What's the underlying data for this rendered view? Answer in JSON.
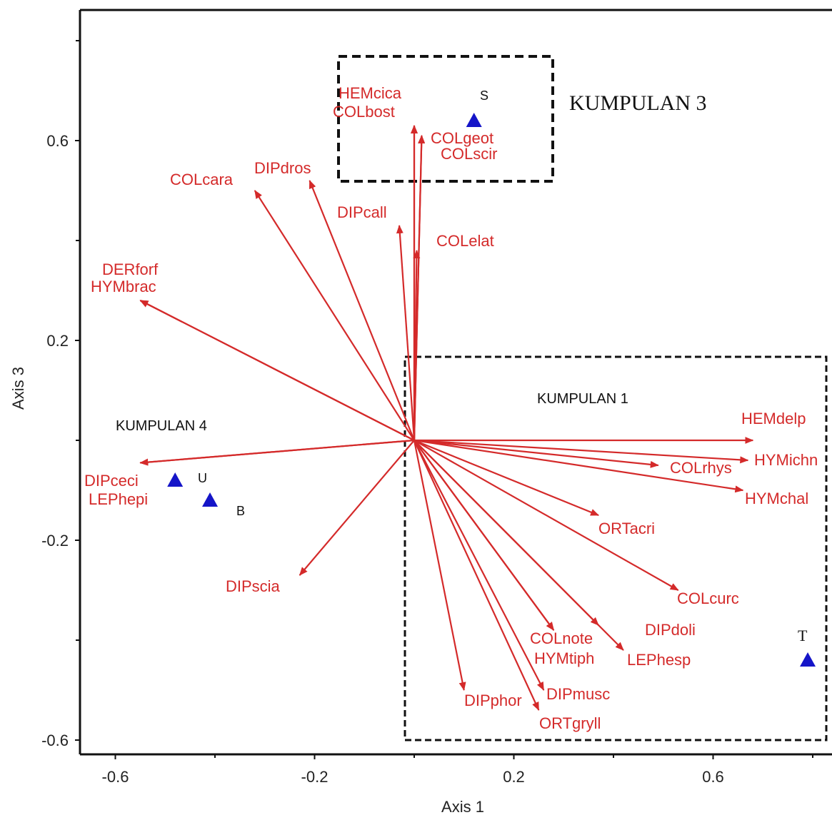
{
  "chart_data": {
    "type": "scatter",
    "subtype": "ordination-biplot",
    "xlabel": "Axis 1",
    "ylabel": "Axis 3",
    "xlim": [
      -0.665,
      0.84
    ],
    "ylim": [
      -0.635,
      0.85
    ],
    "x_ticks": [
      "-0.6",
      "-0.2",
      "0.2",
      "0.6"
    ],
    "y_ticks": [
      "0.6",
      "0.2",
      "-0.2",
      "-0.6"
    ],
    "x_tick_values": [
      -0.6,
      -0.2,
      0.2,
      0.6
    ],
    "y_tick_values": [
      0.6,
      0.2,
      -0.2,
      -0.6
    ],
    "grid": false,
    "origin": [
      0,
      0
    ],
    "arrow_color": "#d42a2a",
    "site_color": "#1515c8",
    "vectors": [
      {
        "name": "HEMcica",
        "x": 0.0,
        "y": 0.63
      },
      {
        "name": "COLbost",
        "x": 0.0,
        "y": 0.63
      },
      {
        "name": "COLgeot",
        "x": 0.015,
        "y": 0.61
      },
      {
        "name": "COLscir",
        "x": 0.015,
        "y": 0.61
      },
      {
        "name": "COLcara",
        "x": -0.32,
        "y": 0.5
      },
      {
        "name": "DIPdros",
        "x": -0.21,
        "y": 0.52
      },
      {
        "name": "DIPcall",
        "x": -0.03,
        "y": 0.43
      },
      {
        "name": "COLelat",
        "x": 0.005,
        "y": 0.38
      },
      {
        "name": "DERforf",
        "x": -0.55,
        "y": 0.28
      },
      {
        "name": "HYMbrac",
        "x": -0.55,
        "y": 0.28
      },
      {
        "name": "HEMdelp",
        "x": 0.68,
        "y": 0.0
      },
      {
        "name": "HYMichn",
        "x": 0.67,
        "y": -0.04
      },
      {
        "name": "COLrhys",
        "x": 0.49,
        "y": -0.05
      },
      {
        "name": "HYMchal",
        "x": 0.66,
        "y": -0.1
      },
      {
        "name": "ORTacri",
        "x": 0.37,
        "y": -0.15
      },
      {
        "name": "COLcurc",
        "x": 0.53,
        "y": -0.3
      },
      {
        "name": "DIPdoli",
        "x": 0.37,
        "y": -0.37
      },
      {
        "name": "LEPhesp",
        "x": 0.42,
        "y": -0.42
      },
      {
        "name": "COLnote",
        "x": 0.28,
        "y": -0.38
      },
      {
        "name": "HYMtiph",
        "x": 0.28,
        "y": -0.38
      },
      {
        "name": "DIPmusc",
        "x": 0.26,
        "y": -0.5
      },
      {
        "name": "ORTgryll",
        "x": 0.25,
        "y": -0.54
      },
      {
        "name": "DIPphor",
        "x": 0.1,
        "y": -0.5
      },
      {
        "name": "DIPscia",
        "x": -0.23,
        "y": -0.27
      },
      {
        "name": "DIPceci",
        "x": -0.55,
        "y": -0.045
      },
      {
        "name": "LEPhepi",
        "x": -0.55,
        "y": -0.045
      }
    ],
    "sites": [
      {
        "label": "S",
        "x": 0.12,
        "y": 0.64
      },
      {
        "label": "U",
        "x": -0.48,
        "y": -0.08
      },
      {
        "label": "B",
        "x": -0.41,
        "y": -0.12
      },
      {
        "label": "T",
        "x": 0.79,
        "y": -0.44
      }
    ],
    "groups": [
      {
        "label": "KUMPULAN 3"
      },
      {
        "label": "KUMPULAN 1"
      },
      {
        "label": "KUMPULAN 4"
      }
    ]
  }
}
